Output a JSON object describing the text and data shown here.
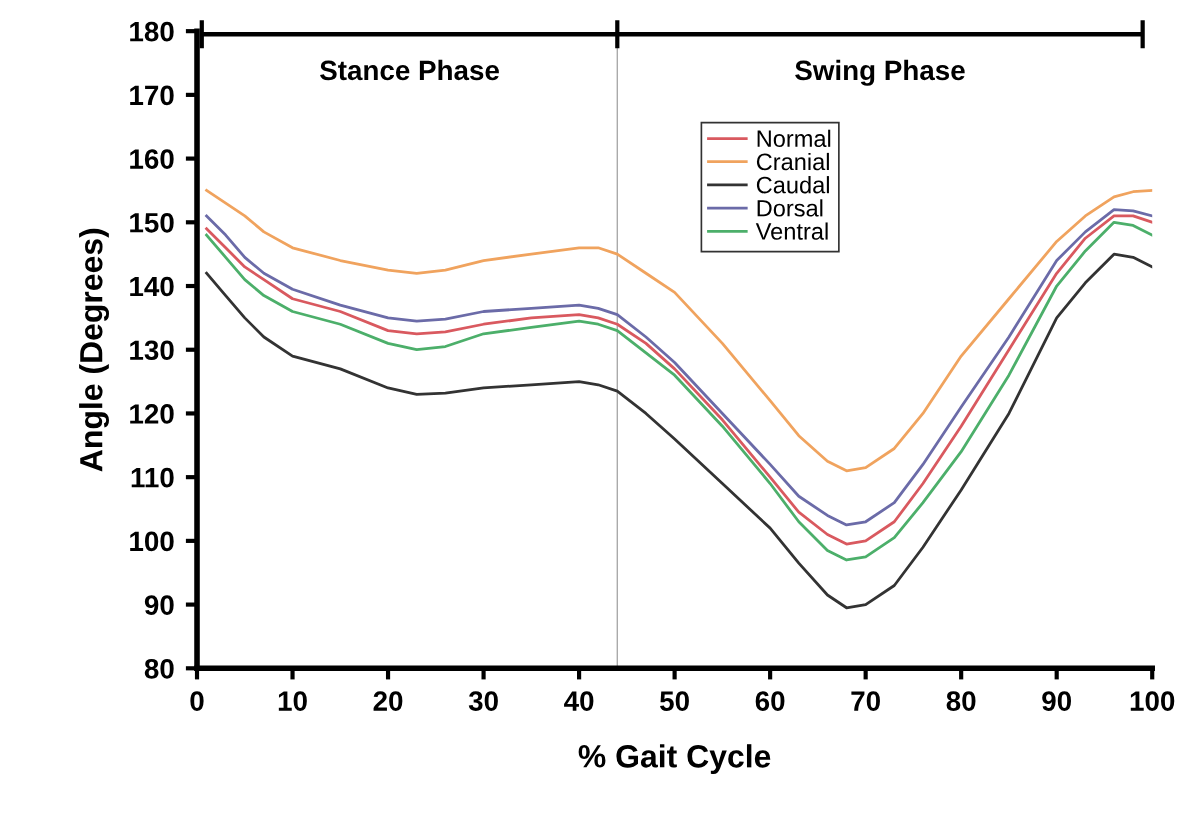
{
  "chart_data": {
    "type": "line",
    "xlabel": "% Gait Cycle",
    "ylabel": "Angle (Degrees)",
    "xlim": [
      0,
      100
    ],
    "ylim": [
      80,
      180
    ],
    "xticks": [
      0,
      10,
      20,
      30,
      40,
      50,
      60,
      70,
      80,
      90,
      100
    ],
    "yticks": [
      80,
      90,
      100,
      110,
      120,
      130,
      140,
      150,
      160,
      170,
      180
    ],
    "legend": "top",
    "marker": "none",
    "line_style": "solid",
    "x": [
      1,
      3,
      5,
      7,
      10,
      15,
      20,
      23,
      26,
      30,
      35,
      40,
      42,
      44,
      47,
      50,
      55,
      60,
      63,
      66,
      68,
      70,
      73,
      76,
      80,
      85,
      90,
      93,
      96,
      98,
      100
    ],
    "series": [
      {
        "name": "Normal",
        "color": "#d9595f",
        "values": [
          149,
          146,
          143,
          141,
          138,
          136,
          133,
          132.5,
          132.8,
          134,
          135,
          135.5,
          135,
          134,
          131,
          127,
          119,
          110,
          104.5,
          101,
          99.5,
          100,
          103,
          109,
          118,
          130,
          142,
          147.5,
          151,
          151,
          150
        ]
      },
      {
        "name": "Cranial",
        "color": "#f0a35e",
        "values": [
          155,
          153,
          151,
          148.5,
          146,
          144,
          142.5,
          142,
          142.5,
          144,
          145,
          146,
          146,
          145,
          142,
          139,
          131,
          122,
          116.5,
          112.5,
          111,
          111.5,
          114.5,
          120,
          129,
          138,
          147,
          151,
          154,
          154.8,
          155
        ]
      },
      {
        "name": "Caudal",
        "color": "#333333",
        "values": [
          142,
          138.5,
          135,
          132,
          129,
          127,
          124,
          123,
          123.2,
          124,
          124.5,
          125,
          124.5,
          123.5,
          120,
          116,
          109,
          102,
          96.5,
          91.5,
          89.5,
          90,
          93,
          99,
          108,
          120,
          135,
          140.5,
          145,
          144.5,
          143
        ]
      },
      {
        "name": "Dorsal",
        "color": "#6b6ba8",
        "values": [
          151,
          148,
          144.5,
          142,
          139.5,
          137,
          135,
          134.5,
          134.8,
          136,
          136.5,
          137,
          136.5,
          135.5,
          132,
          128,
          120,
          112,
          107,
          104,
          102.5,
          103,
          106,
          112,
          121,
          132,
          144,
          148.5,
          152,
          151.8,
          151
        ]
      },
      {
        "name": "Ventral",
        "color": "#4caf6a",
        "values": [
          148,
          144.5,
          141,
          138.5,
          136,
          134,
          131,
          130,
          130.5,
          132.5,
          133.5,
          134.5,
          134,
          133,
          129.5,
          126,
          118,
          109,
          103,
          98.5,
          97,
          97.5,
          100.5,
          106,
          114,
          126,
          140,
          145.5,
          150,
          149.5,
          148
        ]
      }
    ],
    "ref_lines": [
      {
        "axis": "x",
        "value": 44,
        "color": "#aaaaaa"
      }
    ],
    "annotations": [
      "Stance Phase",
      "Swing Phase"
    ]
  }
}
